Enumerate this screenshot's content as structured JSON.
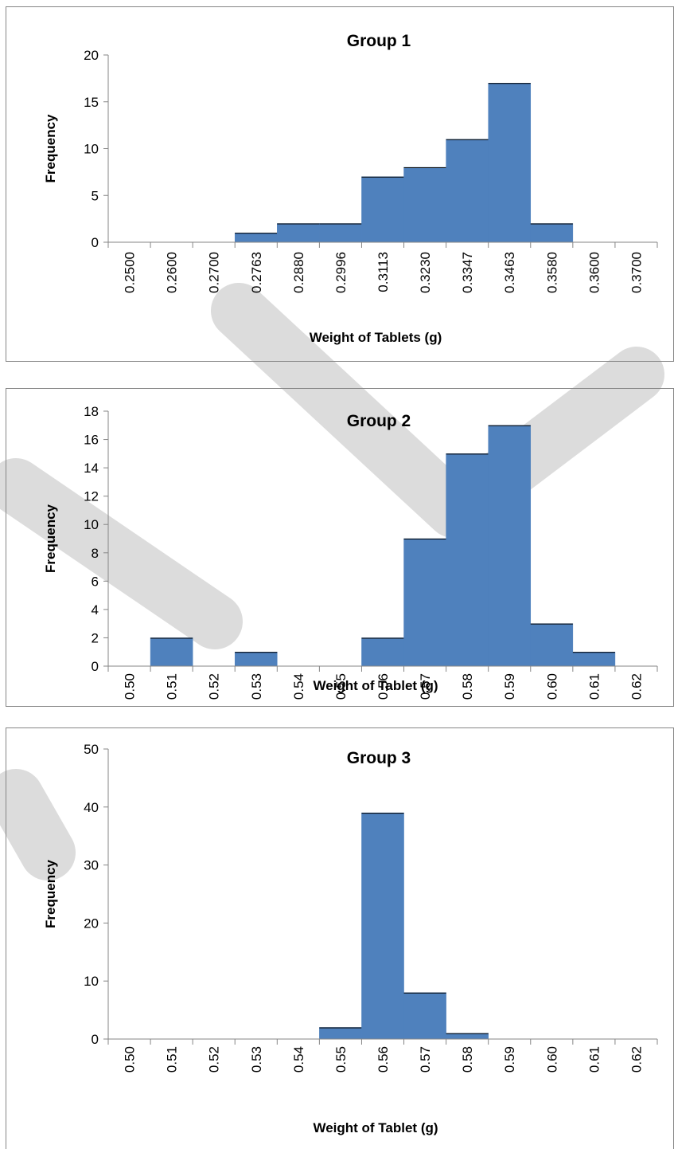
{
  "colors": {
    "bar": "#4F81BD",
    "bar_edge": "#4F81BD",
    "axis": "#868686",
    "frame": "#868686",
    "watermark": "#d9d9d9"
  },
  "chart_data": [
    {
      "type": "bar",
      "title": "Group 1",
      "xlabel": "Weight of Tablets (g)",
      "ylabel": "Frequency",
      "categories": [
        "0.2500",
        "0.2600",
        "0.2700",
        "0.2763",
        "0.2880",
        "0.2996",
        "0.3113",
        "0.3230",
        "0.3347",
        "0.3463",
        "0.3580",
        "0.3600",
        "0.3700"
      ],
      "values": [
        0,
        0,
        0,
        1,
        2,
        2,
        7,
        8,
        11,
        17,
        2,
        0,
        0
      ],
      "ylim": [
        0,
        20
      ],
      "yticks": [
        "0",
        "5",
        "10",
        "15",
        "20"
      ],
      "grid": false,
      "legend": "none"
    },
    {
      "type": "bar",
      "title": "Group 2",
      "xlabel": "Weight of Tablet (g)",
      "ylabel": "Frequency",
      "categories": [
        "0.50",
        "0.51",
        "0.52",
        "0.53",
        "0.54",
        "0.55",
        "0.56",
        "0.57",
        "0.58",
        "0.59",
        "0.60",
        "0.61",
        "0.62"
      ],
      "values": [
        0,
        2,
        0,
        1,
        0,
        0,
        2,
        9,
        15,
        17,
        3,
        1,
        0
      ],
      "ylim": [
        0,
        18
      ],
      "yticks": [
        "0",
        "2",
        "4",
        "6",
        "8",
        "10",
        "12",
        "14",
        "16",
        "18"
      ],
      "grid": false,
      "legend": "none"
    },
    {
      "type": "bar",
      "title": "Group 3",
      "xlabel": "Weight of Tablet (g)",
      "ylabel": "Frequency",
      "categories": [
        "0.50",
        "0.51",
        "0.52",
        "0.53",
        "0.54",
        "0.55",
        "0.56",
        "0.57",
        "0.58",
        "0.59",
        "0.60",
        "0.61",
        "0.62"
      ],
      "values": [
        0,
        0,
        0,
        0,
        0,
        2,
        39,
        8,
        1,
        0,
        0,
        0,
        0
      ],
      "ylim": [
        0,
        50
      ],
      "yticks": [
        "0",
        "10",
        "20",
        "30",
        "40",
        "50"
      ],
      "grid": false,
      "legend": "none"
    }
  ]
}
